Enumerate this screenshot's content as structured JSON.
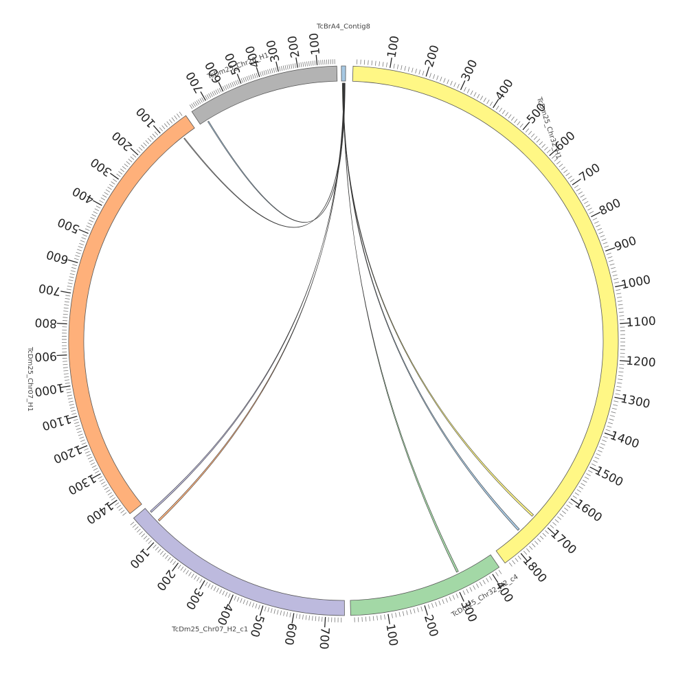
{
  "chart_data": {
    "type": "chord",
    "title": "",
    "segments": [
      {
        "name": "TcBrA4_Contig8",
        "length": 5,
        "color": "#a6c8e3",
        "tick_step": 0,
        "label_step": 0
      },
      {
        "name": "TcDm25_Chr32_H1",
        "length": 1850,
        "color": "#fff785",
        "tick_step": 10,
        "label_step": 100
      },
      {
        "name": "TcDm25_Chr32_H2_c4",
        "length": 425,
        "color": "#a3d8a6",
        "tick_step": 10,
        "label_step": 100
      },
      {
        "name": "TcDm25_Chr07_H2_c1",
        "length": 760,
        "color": "#bdbade",
        "tick_step": 10,
        "label_step": 100
      },
      {
        "name": "TcDm25_Chr07_H1",
        "length": 1460,
        "color": "#feb07a",
        "tick_step": 10,
        "label_step": 100
      },
      {
        "name": "TcDm25_Chr26_H1",
        "length": 790,
        "color": "#b3b3b3",
        "tick_step": 10,
        "label_step": 100
      }
    ],
    "links": [
      {
        "source": "TcBrA4_Contig8",
        "source_pos": [
          1.0,
          1.6
        ],
        "target": "TcDm25_Chr32_H1",
        "target_pos": [
          1700,
          1706
        ],
        "color": "#fff785"
      },
      {
        "source": "TcBrA4_Contig8",
        "source_pos": [
          1.6,
          2.2
        ],
        "target": "TcDm25_Chr32_H1",
        "target_pos": [
          1758,
          1764
        ],
        "color": "#a6c8e3"
      },
      {
        "source": "TcBrA4_Contig8",
        "source_pos": [
          2.2,
          2.7
        ],
        "target": "TcDm25_Chr32_H2_c4",
        "target_pos": [
          316,
          322
        ],
        "color": "#a3d8a6"
      },
      {
        "source": "TcBrA4_Contig8",
        "source_pos": [
          2.7,
          3.2
        ],
        "target": "TcDm25_Chr07_H2_c1",
        "target_pos": [
          18,
          24
        ],
        "color": "#bdbade"
      },
      {
        "source": "TcBrA4_Contig8",
        "source_pos": [
          3.2,
          3.7
        ],
        "target": "TcDm25_Chr07_H2_c1",
        "target_pos": [
          58,
          64
        ],
        "color": "#feb07a"
      },
      {
        "source": "TcBrA4_Contig8",
        "source_pos": [
          3.7,
          4.1
        ],
        "target": "TcDm25_Chr07_H1",
        "target_pos": [
          48,
          51
        ],
        "color": "#b3b3b3"
      },
      {
        "source": "TcBrA4_Contig8",
        "source_pos": [
          4.1,
          4.5
        ],
        "target": "TcDm25_Chr26_H1",
        "target_pos": [
          742,
          748
        ],
        "color": "#a6c8e3"
      }
    ]
  }
}
